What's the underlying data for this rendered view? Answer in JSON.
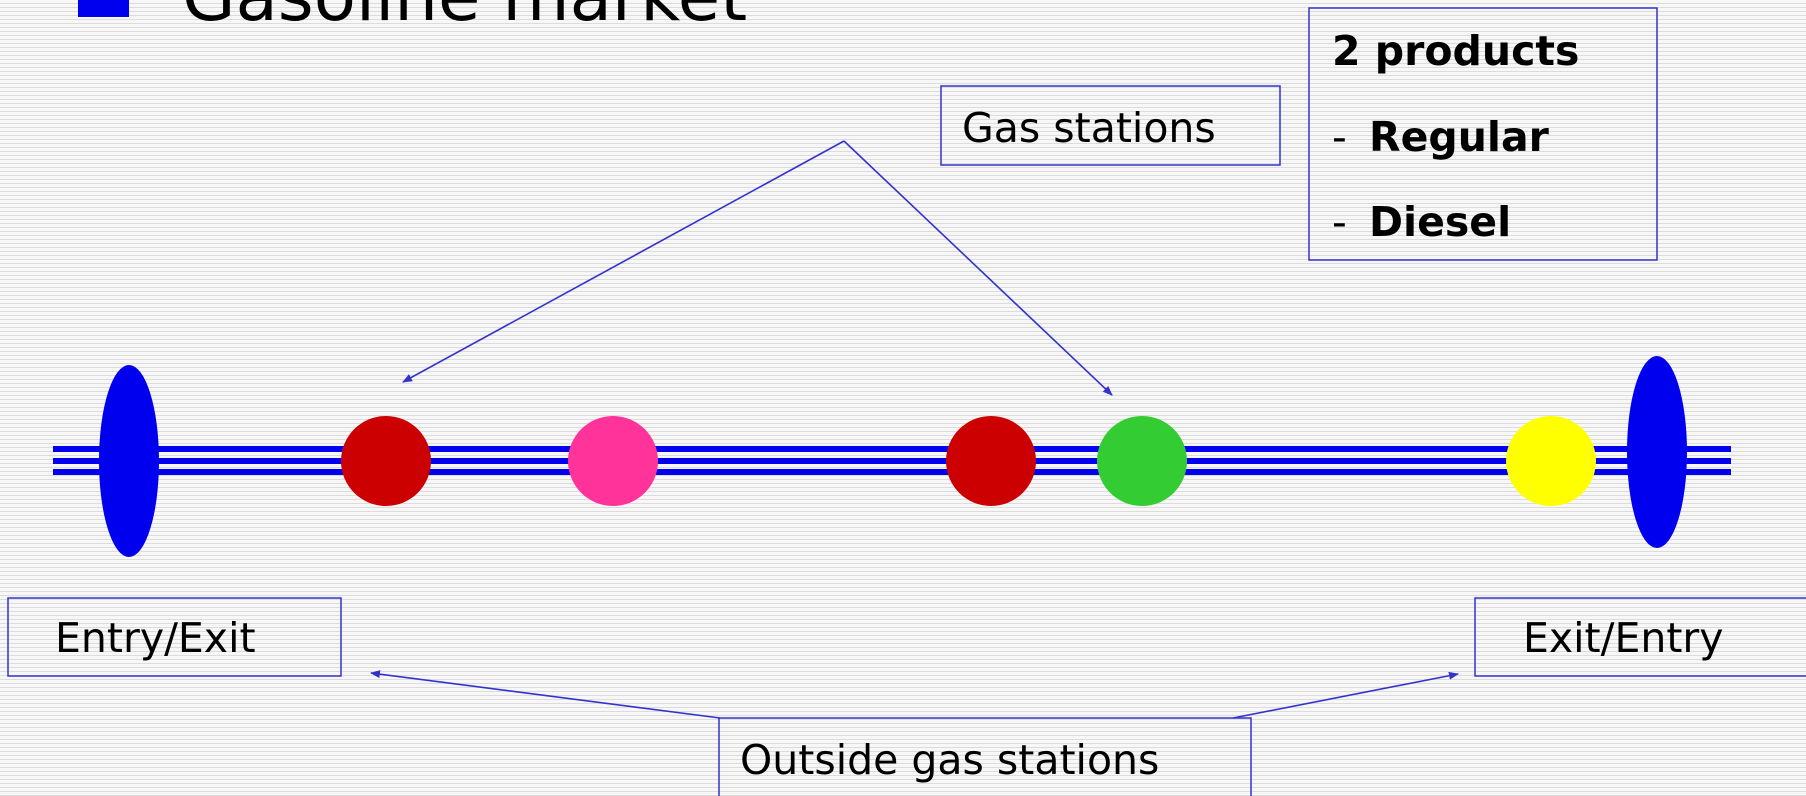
{
  "title": "Gasoline market",
  "callouts": {
    "gas_stations": "Gas stations",
    "outside": "Outside gas stations"
  },
  "products": {
    "heading": "2 products",
    "bullet": "-",
    "items": [
      "Regular",
      "Diesel"
    ]
  },
  "ends": [
    "Entry/Exit",
    "Exit/Entry"
  ]
}
